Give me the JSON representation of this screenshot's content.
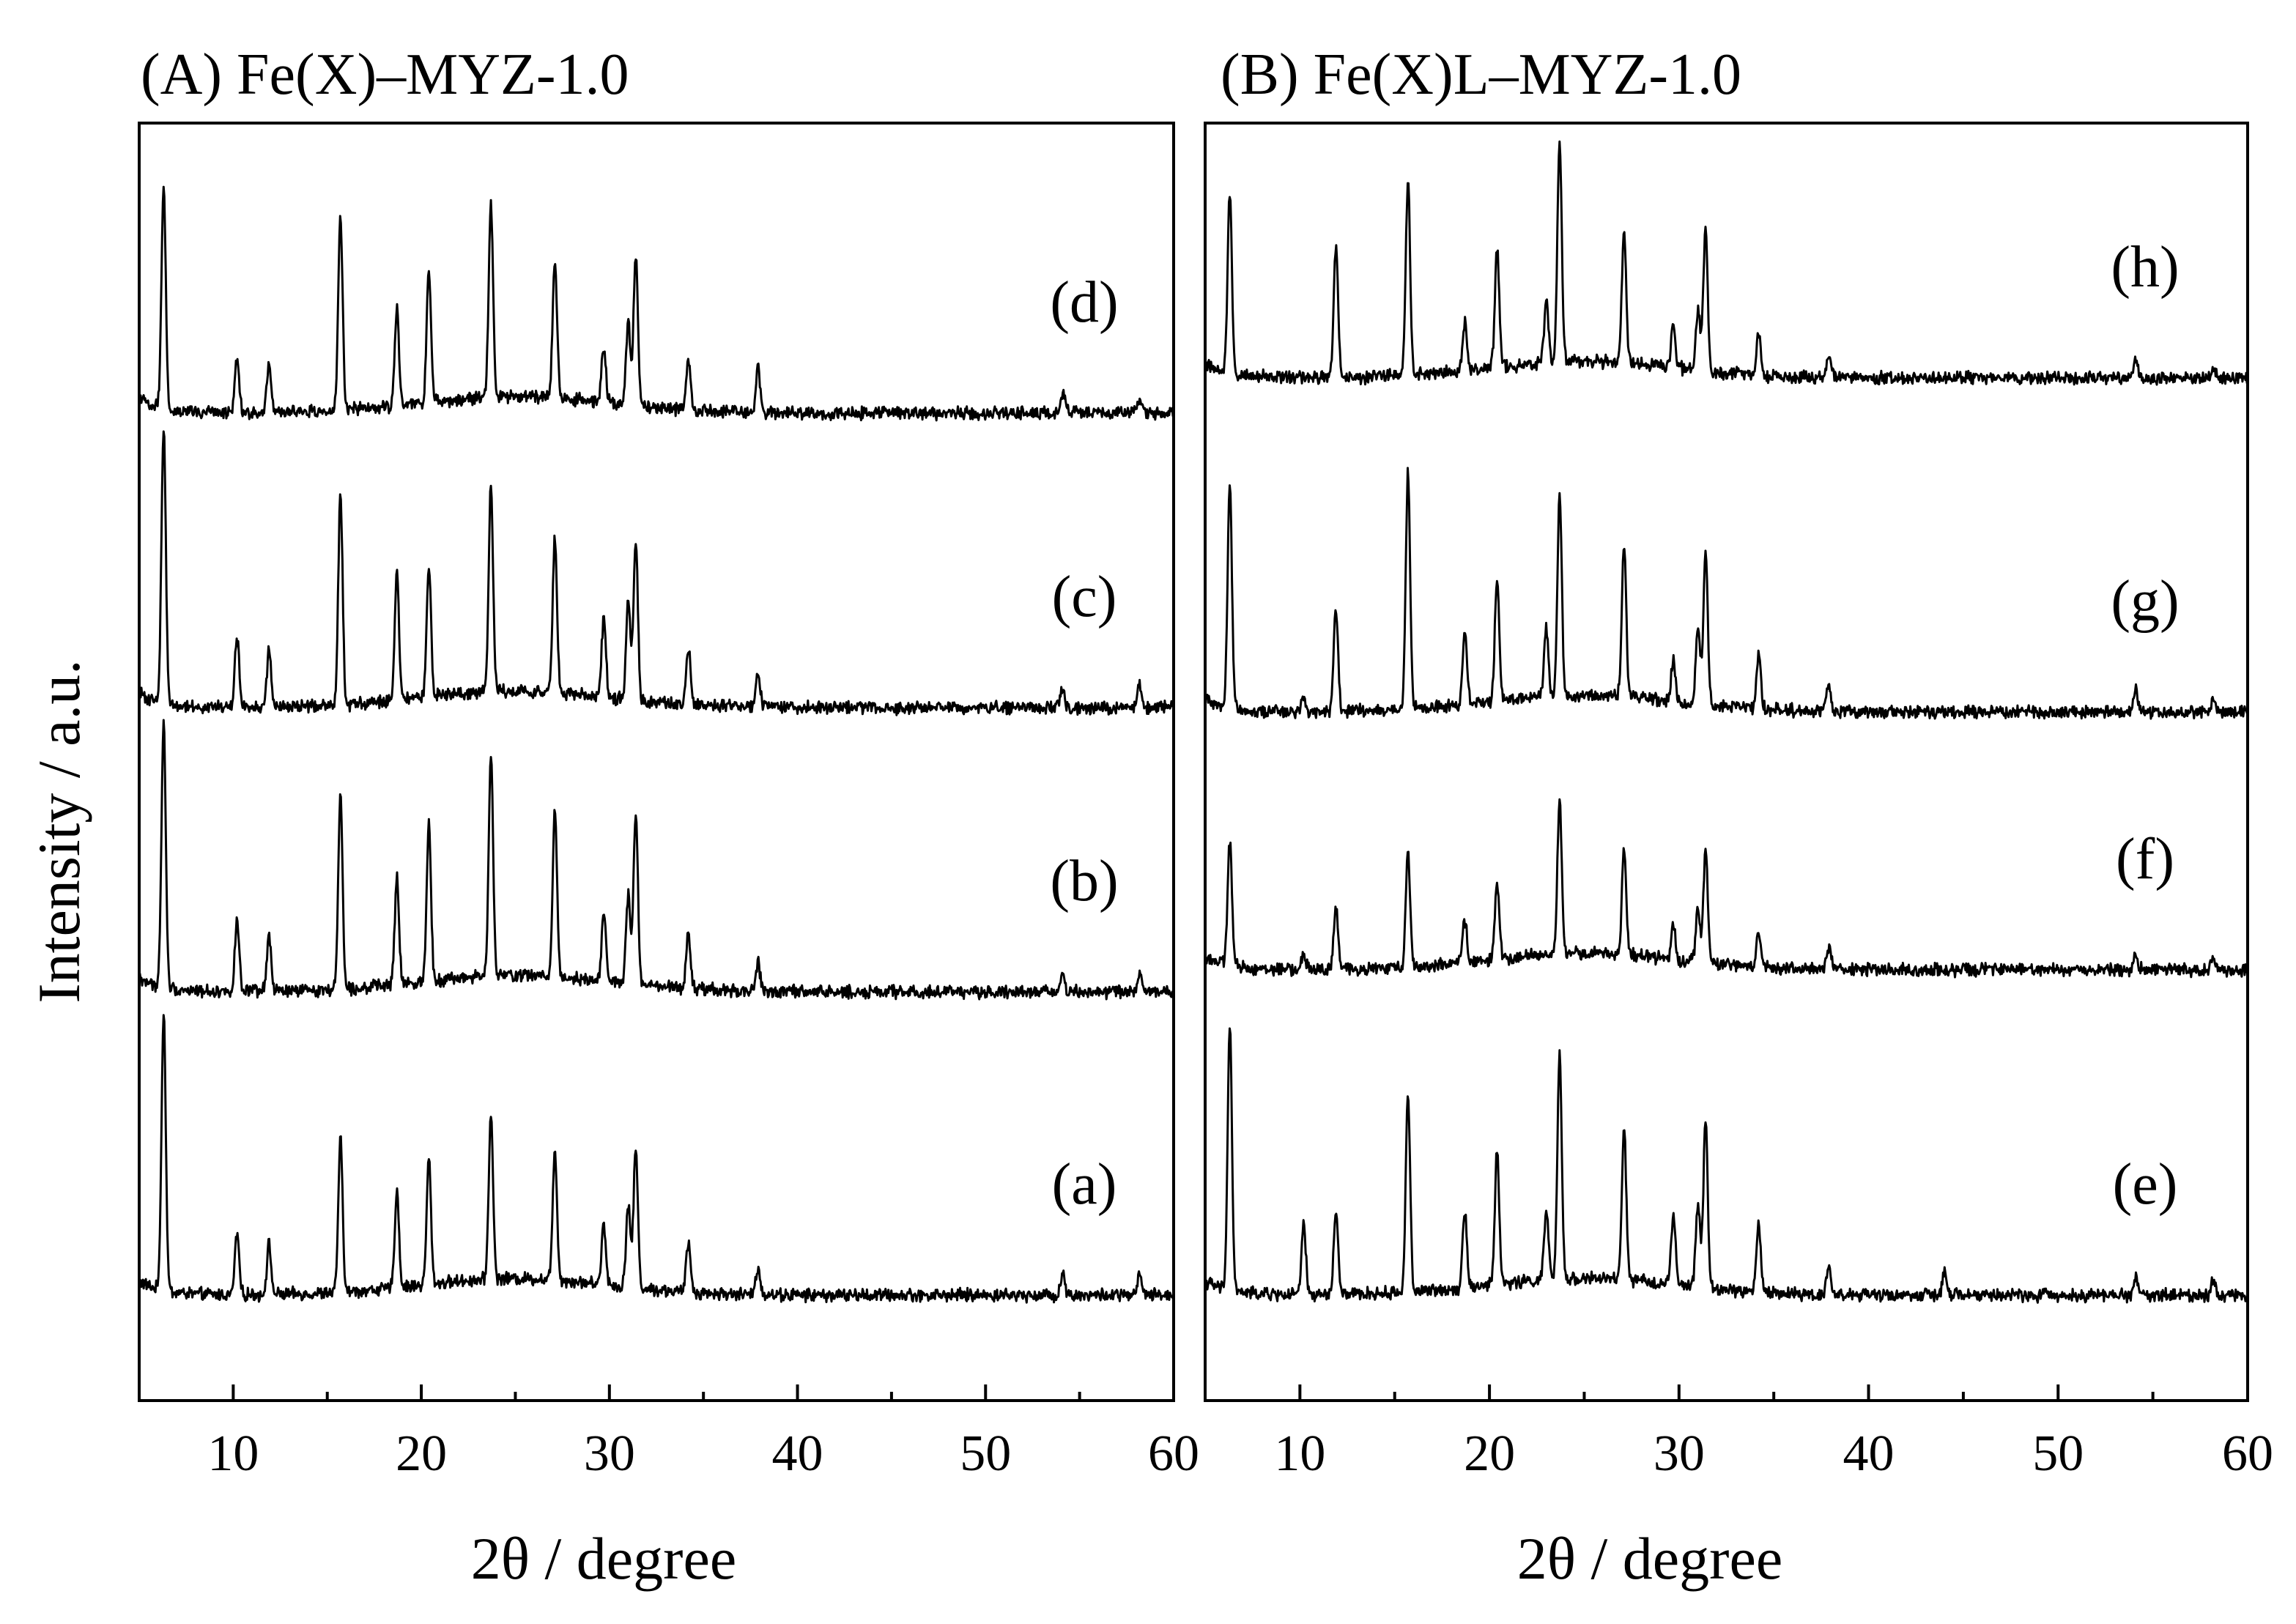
{
  "chart_data": [
    {
      "type": "line",
      "panel": "A",
      "title": "(A) Fe(X)–MYZ-1.0",
      "xlabel": "2θ / degree",
      "ylabel": "Intensity / a.u.",
      "xlim": [
        5,
        60
      ],
      "x_ticks": [
        10,
        20,
        30,
        40,
        50,
        60
      ],
      "grid": false,
      "series": [
        {
          "name": "(a)",
          "label": "(a)",
          "peaks": [
            [
              6.3,
              1.0
            ],
            [
              10.2,
              0.22
            ],
            [
              11.9,
              0.18
            ],
            [
              15.7,
              0.55
            ],
            [
              18.7,
              0.35
            ],
            [
              20.4,
              0.45
            ],
            [
              23.7,
              0.6
            ],
            [
              27.1,
              0.47
            ],
            [
              29.7,
              0.22
            ],
            [
              31.0,
              0.3
            ],
            [
              31.4,
              0.5
            ],
            [
              34.2,
              0.18
            ],
            [
              37.9,
              0.1
            ],
            [
              54.1,
              0.08
            ],
            [
              58.2,
              0.07
            ]
          ]
        },
        {
          "name": "(b)",
          "label": "(b)",
          "peaks": [
            [
              6.3,
              0.95
            ],
            [
              10.2,
              0.25
            ],
            [
              11.9,
              0.2
            ],
            [
              15.7,
              0.7
            ],
            [
              18.7,
              0.38
            ],
            [
              20.4,
              0.57
            ],
            [
              23.7,
              0.8
            ],
            [
              27.1,
              0.6
            ],
            [
              29.7,
              0.25
            ],
            [
              31.0,
              0.32
            ],
            [
              31.4,
              0.62
            ],
            [
              34.2,
              0.2
            ],
            [
              37.9,
              0.1
            ],
            [
              54.1,
              0.07
            ],
            [
              58.2,
              0.06
            ]
          ]
        },
        {
          "name": "(c)",
          "label": "(c)",
          "peaks": [
            [
              6.3,
              1.0
            ],
            [
              10.2,
              0.25
            ],
            [
              11.9,
              0.2
            ],
            [
              15.7,
              0.75
            ],
            [
              18.7,
              0.45
            ],
            [
              20.4,
              0.47
            ],
            [
              23.7,
              0.75
            ],
            [
              27.1,
              0.55
            ],
            [
              29.7,
              0.28
            ],
            [
              31.0,
              0.35
            ],
            [
              31.4,
              0.58
            ],
            [
              34.2,
              0.2
            ],
            [
              37.9,
              0.12
            ],
            [
              54.1,
              0.07
            ],
            [
              58.2,
              0.09
            ]
          ]
        },
        {
          "name": "(d)",
          "label": "(d)",
          "peaks": [
            [
              6.3,
              0.8
            ],
            [
              10.2,
              0.2
            ],
            [
              11.9,
              0.18
            ],
            [
              15.7,
              0.7
            ],
            [
              18.7,
              0.35
            ],
            [
              20.4,
              0.47
            ],
            [
              23.7,
              0.7
            ],
            [
              27.1,
              0.5
            ],
            [
              29.7,
              0.2
            ],
            [
              31.0,
              0.3
            ],
            [
              31.4,
              0.55
            ],
            [
              34.2,
              0.18
            ],
            [
              37.9,
              0.16
            ],
            [
              54.1,
              0.07
            ],
            [
              58.2,
              0.05
            ]
          ]
        }
      ]
    },
    {
      "type": "line",
      "panel": "B",
      "title": "(B) Fe(X)L–MYZ-1.0",
      "xlabel": "2θ / degree",
      "ylabel": "",
      "xlim": [
        5,
        60
      ],
      "x_ticks": [
        10,
        20,
        30,
        40,
        50,
        60
      ],
      "grid": false,
      "series": [
        {
          "name": "(e)",
          "label": "(e)",
          "peaks": [
            [
              6.3,
              0.95
            ],
            [
              10.2,
              0.25
            ],
            [
              11.9,
              0.3
            ],
            [
              15.7,
              0.72
            ],
            [
              18.7,
              0.28
            ],
            [
              20.4,
              0.48
            ],
            [
              23.0,
              0.25
            ],
            [
              23.7,
              0.8
            ],
            [
              27.1,
              0.55
            ],
            [
              29.7,
              0.25
            ],
            [
              31.0,
              0.3
            ],
            [
              31.4,
              0.6
            ],
            [
              34.2,
              0.25
            ],
            [
              37.9,
              0.1
            ],
            [
              44.0,
              0.08
            ],
            [
              54.1,
              0.07
            ],
            [
              58.2,
              0.06
            ]
          ]
        },
        {
          "name": "(f)",
          "label": "(f)",
          "peaks": [
            [
              6.3,
              0.45
            ],
            [
              10.2,
              0.05
            ],
            [
              11.9,
              0.22
            ],
            [
              15.7,
              0.42
            ],
            [
              18.7,
              0.15
            ],
            [
              20.4,
              0.27
            ],
            [
              23.7,
              0.55
            ],
            [
              27.1,
              0.38
            ],
            [
              29.7,
              0.12
            ],
            [
              31.0,
              0.2
            ],
            [
              31.4,
              0.4
            ],
            [
              34.2,
              0.13
            ],
            [
              37.9,
              0.08
            ],
            [
              54.1,
              0.06
            ],
            [
              58.2,
              0.04
            ]
          ]
        },
        {
          "name": "(g)",
          "label": "(g)",
          "peaks": [
            [
              6.3,
              0.8
            ],
            [
              10.2,
              0.06
            ],
            [
              11.9,
              0.38
            ],
            [
              15.7,
              0.85
            ],
            [
              18.7,
              0.25
            ],
            [
              20.4,
              0.45
            ],
            [
              23.0,
              0.25
            ],
            [
              23.7,
              0.72
            ],
            [
              27.1,
              0.55
            ],
            [
              29.7,
              0.15
            ],
            [
              31.0,
              0.28
            ],
            [
              31.4,
              0.55
            ],
            [
              34.2,
              0.2
            ],
            [
              37.9,
              0.1
            ],
            [
              54.1,
              0.08
            ],
            [
              58.2,
              0.05
            ]
          ]
        },
        {
          "name": "(h)",
          "label": "(h)",
          "peaks": [
            [
              6.3,
              0.65
            ],
            [
              11.9,
              0.48
            ],
            [
              15.7,
              0.7
            ],
            [
              18.7,
              0.17
            ],
            [
              20.4,
              0.42
            ],
            [
              23.0,
              0.22
            ],
            [
              23.7,
              0.8
            ],
            [
              27.1,
              0.47
            ],
            [
              29.7,
              0.15
            ],
            [
              31.0,
              0.22
            ],
            [
              31.4,
              0.52
            ],
            [
              34.2,
              0.15
            ],
            [
              37.9,
              0.07
            ],
            [
              54.1,
              0.06
            ],
            [
              58.2,
              0.04
            ]
          ]
        }
      ]
    }
  ]
}
